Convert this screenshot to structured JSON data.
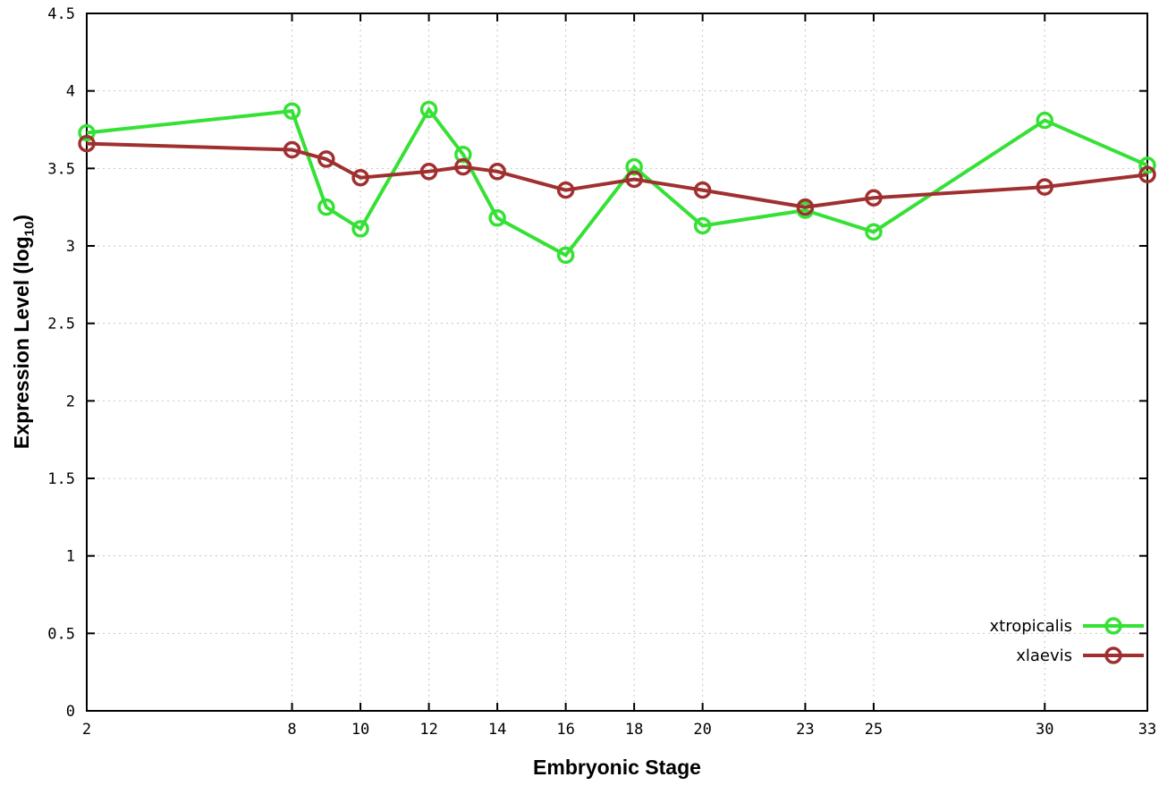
{
  "page": {
    "background": "#ffffff"
  },
  "colors": {
    "grid": "#c4c4c4",
    "axis": "#000000"
  },
  "chart_data": {
    "type": "line",
    "title": "",
    "xlabel": "Embryonic Stage",
    "ylabel": "Expression Level (log10)",
    "ylabel_parts": {
      "pre": "Expression Level (log",
      "sub": "10",
      "post": ")"
    },
    "x": [
      2,
      8,
      9,
      10,
      12,
      13,
      14,
      16,
      18,
      20,
      23,
      25,
      30,
      33
    ],
    "series": [
      {
        "name": "xtropicalis",
        "color": "#35e135",
        "values": [
          3.73,
          3.87,
          3.25,
          3.11,
          3.88,
          3.59,
          3.18,
          2.94,
          3.51,
          3.13,
          3.23,
          3.09,
          3.81,
          3.52
        ]
      },
      {
        "name": "xlaevis",
        "color": "#a03030",
        "values": [
          3.66,
          3.62,
          3.56,
          3.44,
          3.48,
          3.51,
          3.48,
          3.36,
          3.43,
          3.36,
          3.25,
          3.31,
          3.38,
          3.46
        ]
      }
    ],
    "xlim": [
      2,
      33
    ],
    "ylim": [
      0,
      4.5
    ],
    "xticks": [
      2,
      8,
      10,
      12,
      14,
      16,
      18,
      20,
      23,
      25,
      30,
      33
    ],
    "xtick_labels": [
      "2",
      "8",
      "10",
      "12",
      "14",
      "16",
      "18",
      "20",
      "23",
      "25",
      "30",
      "33"
    ],
    "yticks": [
      0,
      0.5,
      1,
      1.5,
      2,
      2.5,
      3,
      3.5,
      4,
      4.5
    ],
    "ytick_labels": [
      "0",
      "0.5",
      "1",
      "1.5",
      "2",
      "2.5",
      "3",
      "3.5",
      "4",
      "4.5"
    ],
    "grid": true,
    "legend": {
      "position": "bottom-right-inside",
      "entries": [
        "xtropicalis",
        "xlaevis"
      ]
    },
    "marker": "open-circle"
  }
}
